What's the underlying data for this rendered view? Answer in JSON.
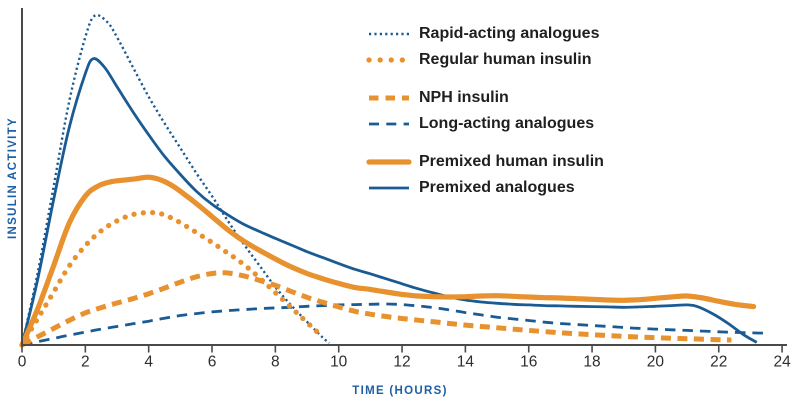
{
  "chart_data": {
    "type": "line",
    "title": "",
    "xlabel": "TIME (HOURS)",
    "ylabel": "INSULIN ACTIVITY",
    "x_ticks": [
      0,
      2,
      4,
      6,
      8,
      10,
      12,
      14,
      16,
      18,
      20,
      22,
      24
    ],
    "xlim": [
      0,
      24
    ],
    "ylim": [
      0,
      105
    ],
    "grid": false,
    "legend_position": "upper-right-inside",
    "colors": {
      "blue": "#1a5b94",
      "orange": "#e8912f",
      "axis": "#4a4a4a",
      "tick_text": "#2e2e2e",
      "axis_title": "#1d5fa6"
    },
    "series": [
      {
        "key": "rapid_acting",
        "name": "Rapid-acting analogues",
        "color": "#1a5b94",
        "style": "dotted-fine",
        "width": 2.4,
        "dash": "2.2 2.9",
        "cap": "butt",
        "z": 1,
        "points": [
          [
            0,
            0
          ],
          [
            0.5,
            22
          ],
          [
            1,
            48
          ],
          [
            1.5,
            74
          ],
          [
            2,
            93
          ],
          [
            2.3,
            99.5
          ],
          [
            2.7,
            97.5
          ],
          [
            3,
            93
          ],
          [
            3.5,
            84
          ],
          [
            4,
            75
          ],
          [
            4.5,
            67
          ],
          [
            5,
            59.5
          ],
          [
            5.5,
            52
          ],
          [
            6,
            45
          ],
          [
            6.5,
            37.5
          ],
          [
            7,
            30.5
          ],
          [
            7.5,
            24
          ],
          [
            8,
            17.5
          ],
          [
            8.5,
            12
          ],
          [
            9,
            7
          ],
          [
            9.5,
            2.2
          ],
          [
            9.7,
            0.6
          ]
        ]
      },
      {
        "key": "regular_human",
        "name": "Regular human insulin",
        "color": "#e8912f",
        "style": "dotted-round",
        "width": 5.2,
        "dash": "0.1 9.2",
        "cap": "round",
        "z": 4,
        "points": [
          [
            0,
            0
          ],
          [
            0.5,
            8
          ],
          [
            1,
            16
          ],
          [
            1.5,
            24
          ],
          [
            2,
            30
          ],
          [
            2.5,
            34.5
          ],
          [
            3,
            37.5
          ],
          [
            3.5,
            39.4
          ],
          [
            4,
            40
          ],
          [
            4.4,
            39.6
          ],
          [
            4.8,
            38
          ],
          [
            5.2,
            35.8
          ],
          [
            5.6,
            33.4
          ],
          [
            6,
            31
          ],
          [
            6.4,
            28.4
          ],
          [
            6.8,
            25.8
          ],
          [
            7.2,
            22.8
          ],
          [
            7.6,
            19.4
          ],
          [
            8,
            15.8
          ],
          [
            8.4,
            12.2
          ],
          [
            8.8,
            8.6
          ],
          [
            9.2,
            5
          ],
          [
            9.5,
            2.4
          ]
        ]
      },
      {
        "key": "nph",
        "name": "NPH insulin",
        "color": "#e8912f",
        "style": "dashed-thick",
        "width": 5,
        "dash": "10 6.5",
        "cap": "butt",
        "z": 5,
        "points": [
          [
            0,
            0
          ],
          [
            0.5,
            2.5
          ],
          [
            1,
            5
          ],
          [
            1.5,
            7.5
          ],
          [
            2,
            9.7
          ],
          [
            2.5,
            11.3
          ],
          [
            3,
            12.7
          ],
          [
            3.5,
            14
          ],
          [
            4,
            15.5
          ],
          [
            4.5,
            17.2
          ],
          [
            5,
            19
          ],
          [
            5.5,
            20.6
          ],
          [
            6,
            21.6
          ],
          [
            6.4,
            21.8
          ],
          [
            6.8,
            21.3
          ],
          [
            7.2,
            20.4
          ],
          [
            7.6,
            19.2
          ],
          [
            8,
            18
          ],
          [
            8.5,
            16.2
          ],
          [
            9,
            14.4
          ],
          [
            9.5,
            12.9
          ],
          [
            10,
            11.5
          ],
          [
            10.5,
            10.2
          ],
          [
            11,
            9.3
          ],
          [
            11.5,
            8.6
          ],
          [
            12,
            8
          ],
          [
            12.5,
            7.5
          ],
          [
            13,
            7
          ],
          [
            13.5,
            6.5
          ],
          [
            14,
            6
          ],
          [
            14.5,
            5.6
          ],
          [
            15,
            5.2
          ],
          [
            15.5,
            4.8
          ],
          [
            16,
            4.4
          ],
          [
            17,
            3.7
          ],
          [
            18,
            3.1
          ],
          [
            19,
            2.6
          ],
          [
            20,
            2.2
          ],
          [
            21,
            1.9
          ],
          [
            22,
            1.6
          ],
          [
            22.4,
            1.5
          ]
        ]
      },
      {
        "key": "long_acting",
        "name": "Long-acting analogues",
        "color": "#1a5b94",
        "style": "dashed-thin",
        "width": 2.8,
        "dash": "10.5 7",
        "cap": "butt",
        "z": 2,
        "points": [
          [
            0,
            0
          ],
          [
            0.5,
            1
          ],
          [
            1,
            2
          ],
          [
            1.5,
            3
          ],
          [
            2,
            3.9
          ],
          [
            2.5,
            4.8
          ],
          [
            3,
            5.6
          ],
          [
            3.5,
            6.4
          ],
          [
            4,
            7.2
          ],
          [
            4.5,
            8.1
          ],
          [
            5,
            8.9
          ],
          [
            5.5,
            9.5
          ],
          [
            6,
            10
          ],
          [
            6.5,
            10.4
          ],
          [
            7,
            10.7
          ],
          [
            7.5,
            11
          ],
          [
            8,
            11.2
          ],
          [
            8.5,
            11.4
          ],
          [
            9,
            11.7
          ],
          [
            9.5,
            11.9
          ],
          [
            10,
            12.1
          ],
          [
            10.5,
            12.2
          ],
          [
            11,
            12.3
          ],
          [
            11.5,
            12.4
          ],
          [
            12,
            12.2
          ],
          [
            12.5,
            11.8
          ],
          [
            13,
            11.3
          ],
          [
            13.5,
            10.6
          ],
          [
            14,
            9.8
          ],
          [
            14.5,
            9.1
          ],
          [
            15,
            8.4
          ],
          [
            15.5,
            7.9
          ],
          [
            16,
            7.4
          ],
          [
            16.5,
            6.9
          ],
          [
            17,
            6.5
          ],
          [
            17.5,
            6.2
          ],
          [
            18,
            5.9
          ],
          [
            18.5,
            5.6
          ],
          [
            19,
            5.3
          ],
          [
            19.5,
            5
          ],
          [
            20,
            4.8
          ],
          [
            20.5,
            4.6
          ],
          [
            21,
            4.4
          ],
          [
            21.5,
            4.2
          ],
          [
            22,
            4
          ],
          [
            22.5,
            3.8
          ],
          [
            23,
            3.7
          ],
          [
            23.4,
            3.6
          ]
        ]
      },
      {
        "key": "premixed_human",
        "name": "Premixed human insulin",
        "color": "#e8912f",
        "style": "solid-thick",
        "width": 5.2,
        "dash": null,
        "cap": "round",
        "z": 6,
        "points": [
          [
            0,
            0
          ],
          [
            0.5,
            11
          ],
          [
            1,
            24
          ],
          [
            1.5,
            37
          ],
          [
            2,
            45
          ],
          [
            2.4,
            48
          ],
          [
            2.8,
            49.3
          ],
          [
            3.2,
            49.8
          ],
          [
            3.6,
            50.2
          ],
          [
            4,
            50.7
          ],
          [
            4.4,
            49.8
          ],
          [
            4.8,
            47.8
          ],
          [
            5.2,
            45
          ],
          [
            5.6,
            42
          ],
          [
            6,
            38.8
          ],
          [
            6.5,
            34.8
          ],
          [
            7,
            31.4
          ],
          [
            7.5,
            28.6
          ],
          [
            8,
            26
          ],
          [
            8.5,
            23.6
          ],
          [
            9,
            21.6
          ],
          [
            9.5,
            20
          ],
          [
            10,
            18.6
          ],
          [
            10.5,
            17.4
          ],
          [
            11,
            16.8
          ],
          [
            11.5,
            16
          ],
          [
            12,
            15.3
          ],
          [
            12.5,
            14.8
          ],
          [
            13,
            14.6
          ],
          [
            13.5,
            14.5
          ],
          [
            14,
            14.6
          ],
          [
            14.5,
            14.8
          ],
          [
            15,
            14.9
          ],
          [
            15.5,
            14.7
          ],
          [
            16,
            14.5
          ],
          [
            16.5,
            14.3
          ],
          [
            17,
            14.2
          ],
          [
            17.5,
            14
          ],
          [
            18,
            13.8
          ],
          [
            18.5,
            13.6
          ],
          [
            19,
            13.5
          ],
          [
            19.5,
            13.7
          ],
          [
            20,
            14.1
          ],
          [
            20.5,
            14.5
          ],
          [
            21,
            14.8
          ],
          [
            21.5,
            14.2
          ],
          [
            22,
            13.2
          ],
          [
            22.5,
            12.3
          ],
          [
            23.1,
            11.6
          ]
        ]
      },
      {
        "key": "premixed_analogues",
        "name": "Premixed analogues",
        "color": "#1a5b94",
        "style": "solid-thin",
        "width": 2.8,
        "dash": null,
        "cap": "butt",
        "z": 3,
        "points": [
          [
            0,
            0
          ],
          [
            0.5,
            20
          ],
          [
            1,
            44
          ],
          [
            1.5,
            66
          ],
          [
            2,
            82
          ],
          [
            2.25,
            86.5
          ],
          [
            2.6,
            84
          ],
          [
            3,
            78
          ],
          [
            3.5,
            70.5
          ],
          [
            4,
            63.5
          ],
          [
            4.5,
            57
          ],
          [
            5,
            51.5
          ],
          [
            5.5,
            46.5
          ],
          [
            6,
            42.5
          ],
          [
            6.5,
            39.3
          ],
          [
            7,
            36.5
          ],
          [
            7.5,
            34.3
          ],
          [
            8,
            32.2
          ],
          [
            8.5,
            30.2
          ],
          [
            9,
            28.2
          ],
          [
            9.5,
            26.4
          ],
          [
            10,
            24.6
          ],
          [
            10.5,
            22.9
          ],
          [
            11,
            21.5
          ],
          [
            11.5,
            20
          ],
          [
            12,
            18.5
          ],
          [
            12.5,
            17
          ],
          [
            13,
            15.7
          ],
          [
            13.5,
            14.5
          ],
          [
            14,
            13.6
          ],
          [
            14.5,
            13
          ],
          [
            15,
            12.6
          ],
          [
            15.5,
            12.3
          ],
          [
            16,
            12.1
          ],
          [
            16.5,
            11.9
          ],
          [
            17,
            11.8
          ],
          [
            17.5,
            11.7
          ],
          [
            18,
            11.6
          ],
          [
            18.5,
            11.5
          ],
          [
            19,
            11.4
          ],
          [
            19.5,
            11.5
          ],
          [
            20,
            11.7
          ],
          [
            20.5,
            11.9
          ],
          [
            21,
            12.1
          ],
          [
            21.3,
            11.7
          ],
          [
            21.8,
            9.5
          ],
          [
            22.3,
            6.5
          ],
          [
            22.8,
            3
          ],
          [
            23.2,
            0.8
          ]
        ]
      }
    ]
  },
  "legend": {
    "items": [
      {
        "series": 0,
        "label": "Rapid-acting analogues",
        "group": 1,
        "legend_dash": "2.2 3.2"
      },
      {
        "series": 1,
        "label": "Regular human insulin",
        "group": 1,
        "legend_dash": "0.1 11"
      },
      {
        "series": 2,
        "label": "NPH insulin",
        "group": 2,
        "legend_dash": "9.5 7"
      },
      {
        "series": 3,
        "label": "Long-acting analogues",
        "group": 2,
        "legend_dash": "10 7.3"
      },
      {
        "series": 4,
        "label": "Premixed human insulin",
        "group": 3,
        "legend_dash": null
      },
      {
        "series": 5,
        "label": "Premixed analogues",
        "group": 3,
        "legend_dash": null
      }
    ]
  }
}
